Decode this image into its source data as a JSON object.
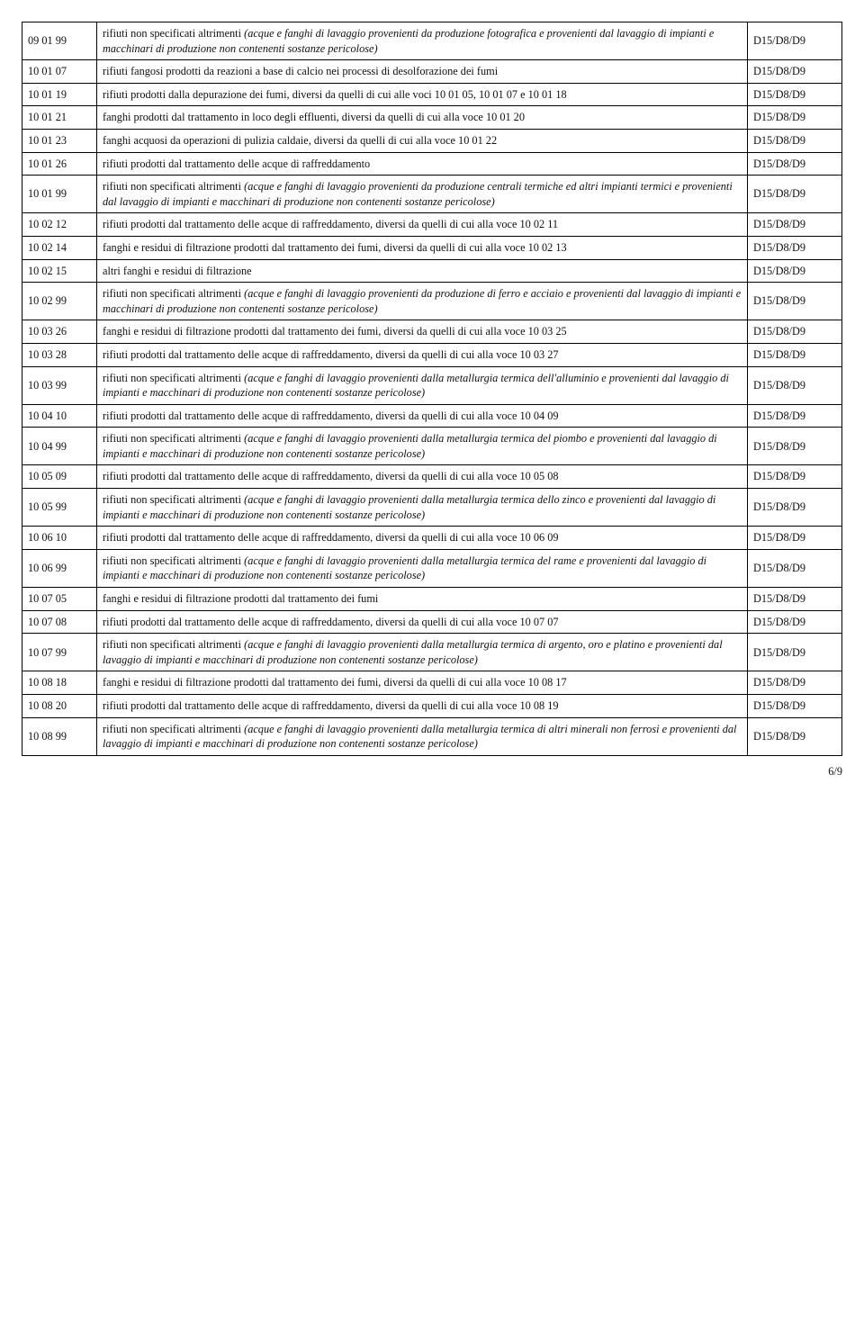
{
  "pager": "6/9",
  "classLabel": "D15/D8/D9",
  "rows": [
    {
      "code": "09 01 99",
      "segments": [
        {
          "t": "rifiuti non specificati altrimenti ",
          "i": false
        },
        {
          "t": "(acque e fanghi di lavaggio provenienti da produzione fotografica e provenienti dal lavaggio di impianti e macchinari di produzione non contenenti sostanze pericolose)",
          "i": true
        }
      ]
    },
    {
      "code": "10 01 07",
      "segments": [
        {
          "t": "rifiuti fangosi prodotti da reazioni a base di calcio nei processi di desolforazione dei fumi",
          "i": false
        }
      ]
    },
    {
      "code": "10 01 19",
      "segments": [
        {
          "t": "rifiuti prodotti dalla depurazione dei fumi, diversi da quelli di cui alle voci 10 01 05, 10 01 07 e 10 01 18",
          "i": false
        }
      ]
    },
    {
      "code": "10 01 21",
      "segments": [
        {
          "t": "fanghi prodotti dal trattamento in loco degli effluenti, diversi da quelli di cui alla voce 10 01 20",
          "i": false
        }
      ]
    },
    {
      "code": "10 01 23",
      "segments": [
        {
          "t": "fanghi acquosi da operazioni di pulizia caldaie, diversi da quelli di cui alla voce 10 01 22",
          "i": false
        }
      ]
    },
    {
      "code": "10 01 26",
      "segments": [
        {
          "t": "rifiuti prodotti dal trattamento delle acque di raffreddamento",
          "i": false
        }
      ]
    },
    {
      "code": "10 01 99",
      "segments": [
        {
          "t": "rifiuti non specificati altrimenti ",
          "i": false
        },
        {
          "t": "(acque e fanghi di lavaggio provenienti da produzione centrali termiche ed altri impianti termici e provenienti dal lavaggio di impianti e macchinari di produzione non contenenti sostanze pericolose)",
          "i": true
        }
      ]
    },
    {
      "code": "10 02 12",
      "segments": [
        {
          "t": "rifiuti prodotti dal trattamento delle acque di raffreddamento, diversi da quelli di cui alla voce 10 02 11",
          "i": false
        }
      ]
    },
    {
      "code": "10 02 14",
      "segments": [
        {
          "t": "fanghi e residui di filtrazione prodotti dal trattamento dei fumi, diversi da quelli di cui alla voce 10 02 13",
          "i": false
        }
      ]
    },
    {
      "code": "10 02 15",
      "segments": [
        {
          "t": "altri fanghi e residui di filtrazione",
          "i": false
        }
      ]
    },
    {
      "code": "10 02 99",
      "segments": [
        {
          "t": "rifiuti non specificati altrimenti ",
          "i": false
        },
        {
          "t": "(acque e fanghi di lavaggio provenienti da produzione di ferro e acciaio e provenienti dal lavaggio di impianti e macchinari di produzione non contenenti sostanze pericolose)",
          "i": true
        }
      ]
    },
    {
      "code": "10 03 26",
      "segments": [
        {
          "t": "fanghi e residui di filtrazione prodotti dal trattamento dei fumi, diversi da quelli di cui alla voce 10 03 25",
          "i": false
        }
      ]
    },
    {
      "code": "10 03 28",
      "segments": [
        {
          "t": "rifiuti prodotti dal trattamento delle acque di raffreddamento, diversi da quelli di cui alla voce 10 03 27",
          "i": false
        }
      ]
    },
    {
      "code": "10 03 99",
      "segments": [
        {
          "t": "rifiuti non specificati altrimenti ",
          "i": false
        },
        {
          "t": "(acque e fanghi di lavaggio provenienti dalla metallurgia termica dell'alluminio e provenienti dal lavaggio di impianti e macchinari di produzione non contenenti sostanze pericolose)",
          "i": true
        }
      ]
    },
    {
      "code": "10 04 10",
      "segments": [
        {
          "t": "rifiuti prodotti dal trattamento delle acque di raffreddamento, diversi da quelli di cui alla voce 10 04 09",
          "i": false
        }
      ]
    },
    {
      "code": "10 04 99",
      "segments": [
        {
          "t": "rifiuti non specificati altrimenti ",
          "i": false
        },
        {
          "t": "(acque e fanghi di lavaggio provenienti dalla metallurgia termica del piombo e provenienti dal lavaggio di impianti e macchinari di produzione non contenenti sostanze pericolose)",
          "i": true
        }
      ]
    },
    {
      "code": "10 05 09",
      "segments": [
        {
          "t": "rifiuti prodotti dal trattamento delle acque di raffreddamento, diversi da quelli di cui alla voce 10 05 08",
          "i": false
        }
      ]
    },
    {
      "code": "10 05 99",
      "segments": [
        {
          "t": "rifiuti non specificati altrimenti ",
          "i": false
        },
        {
          "t": "(acque e fanghi di lavaggio provenienti dalla metallurgia termica dello zinco e provenienti dal lavaggio di impianti e macchinari di produzione non contenenti sostanze pericolose)",
          "i": true
        }
      ]
    },
    {
      "code": "10 06 10",
      "segments": [
        {
          "t": "rifiuti prodotti dal trattamento delle acque di raffreddamento, diversi da quelli di cui alla voce 10 06 09",
          "i": false
        }
      ]
    },
    {
      "code": "10 06 99",
      "segments": [
        {
          "t": "rifiuti non specificati altrimenti ",
          "i": false
        },
        {
          "t": "(acque e fanghi di lavaggio provenienti dalla metallurgia termica del rame e provenienti dal lavaggio di impianti e macchinari di produzione non contenenti sostanze pericolose)",
          "i": true
        }
      ]
    },
    {
      "code": "10 07 05",
      "segments": [
        {
          "t": "fanghi e residui di filtrazione prodotti dal trattamento dei fumi",
          "i": false
        }
      ]
    },
    {
      "code": "10 07 08",
      "segments": [
        {
          "t": "rifiuti prodotti dal trattamento delle acque di raffreddamento, diversi da quelli di cui alla voce 10 07 07",
          "i": false
        }
      ]
    },
    {
      "code": "10 07 99",
      "segments": [
        {
          "t": "rifiuti non specificati altrimenti ",
          "i": false
        },
        {
          "t": "(acque e fanghi di lavaggio provenienti dalla metallurgia termica di argento, oro e platino e provenienti dal lavaggio di impianti e macchinari di produzione non contenenti sostanze pericolose)",
          "i": true
        }
      ]
    },
    {
      "code": "10 08 18",
      "segments": [
        {
          "t": "fanghi e residui di filtrazione prodotti dal trattamento dei fumi, diversi da quelli di cui alla voce 10 08 17",
          "i": false
        }
      ]
    },
    {
      "code": "10 08 20",
      "segments": [
        {
          "t": "rifiuti prodotti dal trattamento delle acque di raffreddamento, diversi da quelli di cui alla voce 10 08 19",
          "i": false
        }
      ]
    },
    {
      "code": "10 08 99",
      "segments": [
        {
          "t": "rifiuti non specificati altrimenti ",
          "i": false
        },
        {
          "t": "(acque e fanghi di lavaggio provenienti dalla metallurgia termica di altri minerali non ferrosi e provenienti dal lavaggio di impianti e macchinari di produzione non contenenti sostanze pericolose)",
          "i": true
        }
      ]
    }
  ]
}
